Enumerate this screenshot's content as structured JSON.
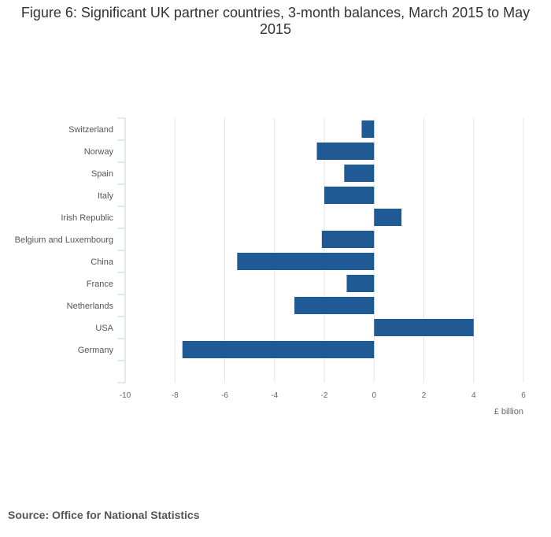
{
  "chart_data": {
    "type": "bar",
    "orientation": "horizontal",
    "title": "Figure 6: Significant UK partner countries, 3-month balances, March 2015 to May 2015",
    "categories": [
      "Switzerland",
      "Norway",
      "Spain",
      "Italy",
      "Irish Republic",
      "Belgium and Luxembourg",
      "China",
      "France",
      "Netherlands",
      "USA",
      "Germany"
    ],
    "values": [
      -0.5,
      -2.3,
      -1.2,
      -2.0,
      1.1,
      -2.1,
      -5.5,
      -1.1,
      -3.2,
      4.0,
      -7.7
    ],
    "xlabel": "£ billion",
    "ylabel": "",
    "xlim": [
      -10,
      6
    ],
    "xticks": [
      "-10",
      "-8",
      "-6",
      "-4",
      "-2",
      "0",
      "2",
      "4",
      "6"
    ],
    "grid": true,
    "bar_color": "#1f5a94",
    "source": "Source: Office for National Statistics"
  }
}
